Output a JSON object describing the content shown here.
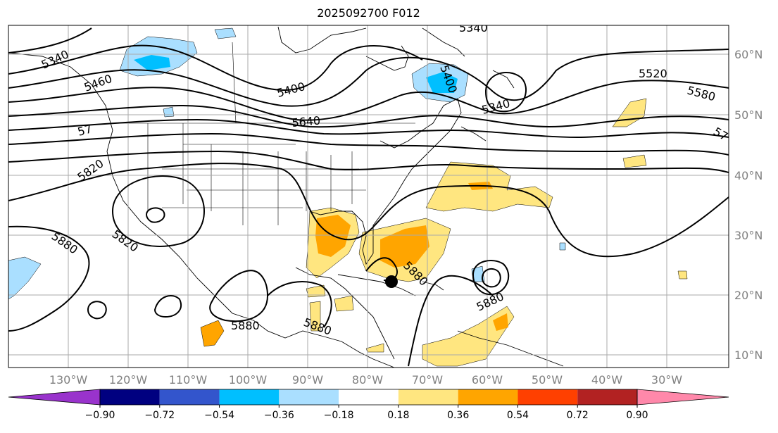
{
  "title": "2025092700 F012",
  "latitude_labels": [
    "60°N",
    "50°N",
    "40°N",
    "30°N",
    "20°N",
    "10°N"
  ],
  "longitude_labels": [
    "130°W",
    "120°W",
    "110°W",
    "100°W",
    "90°W",
    "80°W",
    "70°W",
    "60°W",
    "50°W",
    "40°W",
    "30°W"
  ],
  "contour_labels": [
    "5340",
    "5460",
    "5400",
    "5640",
    "5340",
    "5400",
    "5340",
    "5520",
    "5580",
    "57",
    "57",
    "5820",
    "5820",
    "5880",
    "5880",
    "5880",
    "5880",
    "5880"
  ],
  "colorbar": {
    "ticks": [
      "−0.90",
      "−0.72",
      "−0.54",
      "−0.36",
      "−0.18",
      "0.18",
      "0.36",
      "0.54",
      "0.72",
      "0.90"
    ],
    "colors": [
      "#9933cc",
      "#000080",
      "#3355cc",
      "#00bfff",
      "#aadfff",
      "#ffffff",
      "#ffe680",
      "#ffa500",
      "#ff4000",
      "#b22222",
      "#ff88aa"
    ]
  },
  "marker": "storm-center-dot"
}
